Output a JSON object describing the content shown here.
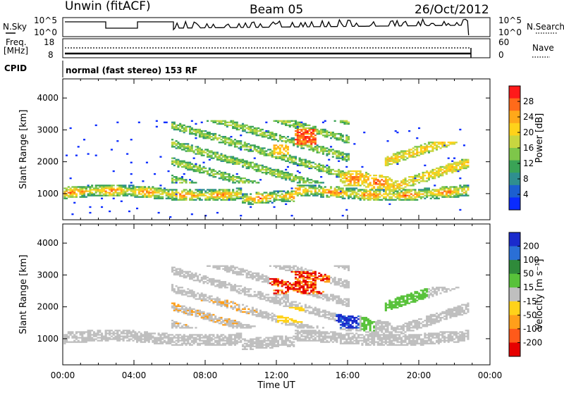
{
  "header": {
    "station": "Unwin (fitACF)",
    "beam": "Beam 05",
    "date": "26/Oct/2012"
  },
  "status_panels": {
    "nsky_label": "N.Sky",
    "nsearch_label": "N.Search",
    "noise_ticks": [
      "10^5",
      "10^0"
    ],
    "freq_label_1": "Freq.",
    "freq_label_2": "[MHz]",
    "freq_ticks": [
      "18",
      "8"
    ],
    "nave_label": "Nave",
    "nave_ticks": [
      "60",
      "0"
    ],
    "cpid_label": "CPID",
    "cpid_value": "normal (fast stereo) 153 RF"
  },
  "chart_data": [
    {
      "type": "heatmap",
      "panel": "power",
      "ylabel": "Slant Range [km]",
      "xlabel": "",
      "x_ticks": [
        "00:00",
        "04:00",
        "08:00",
        "12:00",
        "16:00",
        "20:00",
        "00:00"
      ],
      "x_range_hours": [
        0,
        24
      ],
      "y_ticks": [
        1000,
        2000,
        3000,
        4000
      ],
      "ylim": [
        180,
        4600
      ],
      "colorbar": {
        "label": "Power [dB]",
        "ticks": [
          "28",
          "24",
          "20",
          "16",
          "12",
          "8",
          "4"
        ],
        "colors": [
          "#0a2bff",
          "#1c5fd0",
          "#2f8f8f",
          "#3aa356",
          "#7ec64a",
          "#c8d640",
          "#ffd21a",
          "#ffa81a",
          "#ff6a1a",
          "#ff1a1a"
        ]
      }
    },
    {
      "type": "heatmap",
      "panel": "velocity",
      "ylabel": "Slant Range [km]",
      "xlabel": "Time UT",
      "x_ticks": [
        "00:00",
        "04:00",
        "08:00",
        "12:00",
        "16:00",
        "20:00",
        "00:00"
      ],
      "x_range_hours": [
        0,
        24
      ],
      "y_ticks": [
        1000,
        2000,
        3000,
        4000
      ],
      "ylim": [
        180,
        4600
      ],
      "colorbar": {
        "label": "Velocity [m s⁻¹]",
        "ticks": [
          "200",
          "100",
          "50",
          "15",
          "-15",
          "-50",
          "-100",
          "-200"
        ],
        "colors": [
          "#1a2bcc",
          "#2a6fd6",
          "#2f8a3a",
          "#58c23a",
          "#bfbfbf",
          "#ffd21a",
          "#ff9f1a",
          "#ff5a1a",
          "#e60000"
        ]
      }
    }
  ]
}
